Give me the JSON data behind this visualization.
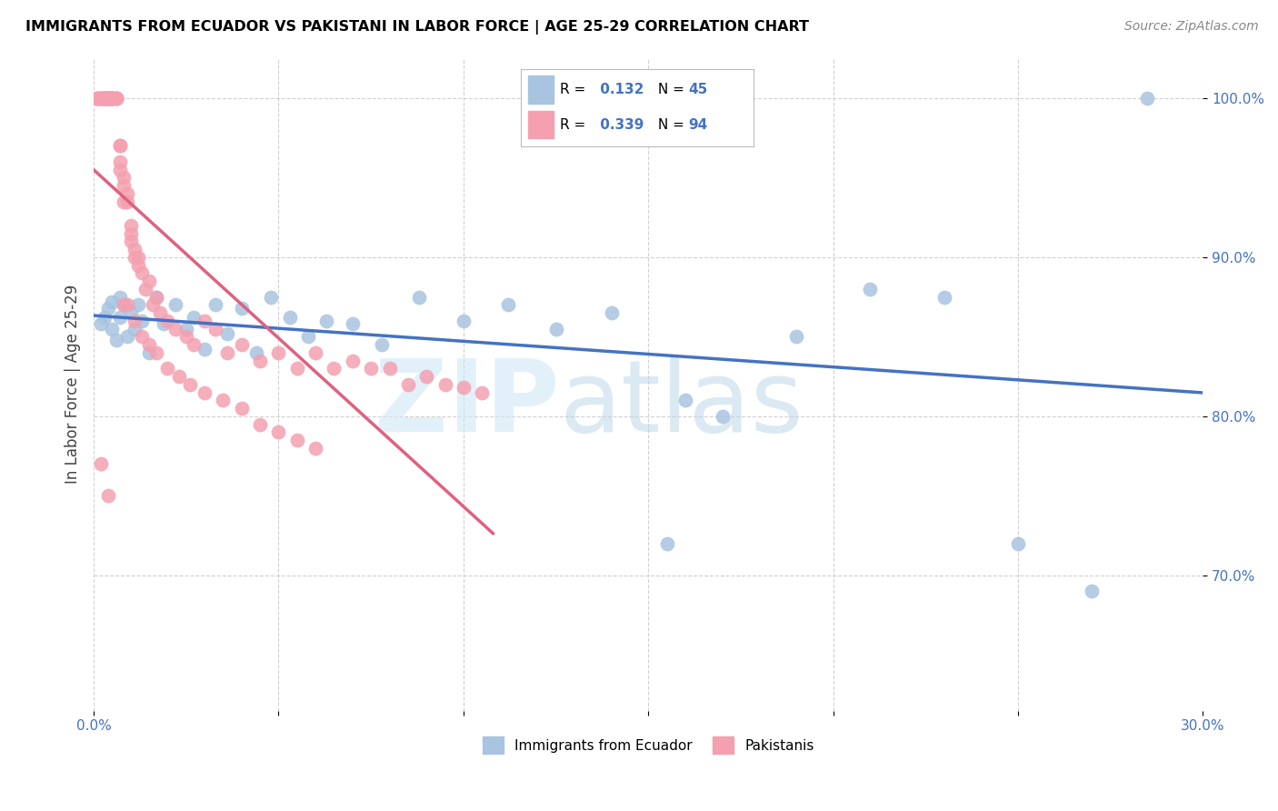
{
  "title": "IMMIGRANTS FROM ECUADOR VS PAKISTANI IN LABOR FORCE | AGE 25-29 CORRELATION CHART",
  "source": "Source: ZipAtlas.com",
  "ylabel": "In Labor Force | Age 25-29",
  "xlim": [
    0.0,
    0.3
  ],
  "ylim": [
    0.615,
    1.025
  ],
  "yticks": [
    0.7,
    0.8,
    0.9,
    1.0
  ],
  "ytick_labels": [
    "70.0%",
    "80.0%",
    "90.0%",
    "100.0%"
  ],
  "xticks": [
    0.0,
    0.05,
    0.1,
    0.15,
    0.2,
    0.25,
    0.3
  ],
  "xtick_labels": [
    "0.0%",
    "",
    "",
    "",
    "",
    "",
    "30.0%"
  ],
  "ecuador_R": 0.132,
  "ecuador_N": 45,
  "pakistan_R": 0.339,
  "pakistan_N": 94,
  "ecuador_color": "#a8c4e0",
  "pakistan_color": "#f4a0b0",
  "ecuador_line_color": "#4472c4",
  "pakistan_line_color": "#e06080",
  "watermark_zip": "ZIP",
  "watermark_atlas": "atlas",
  "ecuador_x": [
    0.002,
    0.003,
    0.004,
    0.005,
    0.005,
    0.006,
    0.007,
    0.007,
    0.008,
    0.009,
    0.01,
    0.011,
    0.012,
    0.013,
    0.015,
    0.017,
    0.019,
    0.022,
    0.025,
    0.027,
    0.03,
    0.033,
    0.036,
    0.04,
    0.044,
    0.048,
    0.053,
    0.058,
    0.063,
    0.07,
    0.078,
    0.088,
    0.1,
    0.112,
    0.125,
    0.14,
    0.155,
    0.17,
    0.19,
    0.21,
    0.23,
    0.25,
    0.27,
    0.285,
    0.16
  ],
  "ecuador_y": [
    0.858,
    0.862,
    0.868,
    0.855,
    0.872,
    0.848,
    0.875,
    0.862,
    0.87,
    0.85,
    0.865,
    0.855,
    0.87,
    0.86,
    0.84,
    0.875,
    0.858,
    0.87,
    0.855,
    0.862,
    0.842,
    0.87,
    0.852,
    0.868,
    0.84,
    0.875,
    0.862,
    0.85,
    0.86,
    0.858,
    0.845,
    0.875,
    0.86,
    0.87,
    0.855,
    0.865,
    0.72,
    0.8,
    0.85,
    0.88,
    0.875,
    0.72,
    0.69,
    1.0,
    0.81
  ],
  "pakistan_x": [
    0.001,
    0.001,
    0.001,
    0.002,
    0.002,
    0.002,
    0.002,
    0.003,
    0.003,
    0.003,
    0.003,
    0.003,
    0.003,
    0.003,
    0.003,
    0.004,
    0.004,
    0.004,
    0.004,
    0.004,
    0.004,
    0.005,
    0.005,
    0.005,
    0.005,
    0.005,
    0.005,
    0.005,
    0.005,
    0.006,
    0.006,
    0.006,
    0.006,
    0.007,
    0.007,
    0.007,
    0.007,
    0.008,
    0.008,
    0.008,
    0.009,
    0.009,
    0.01,
    0.01,
    0.01,
    0.011,
    0.011,
    0.012,
    0.012,
    0.013,
    0.014,
    0.015,
    0.016,
    0.017,
    0.018,
    0.02,
    0.022,
    0.025,
    0.027,
    0.03,
    0.033,
    0.036,
    0.04,
    0.045,
    0.05,
    0.055,
    0.06,
    0.065,
    0.07,
    0.075,
    0.08,
    0.085,
    0.09,
    0.095,
    0.1,
    0.105,
    0.008,
    0.009,
    0.011,
    0.013,
    0.015,
    0.017,
    0.02,
    0.023,
    0.026,
    0.03,
    0.035,
    0.04,
    0.045,
    0.05,
    0.055,
    0.06,
    0.002,
    0.004
  ],
  "pakistan_y": [
    1.0,
    1.0,
    1.0,
    1.0,
    1.0,
    1.0,
    1.0,
    1.0,
    1.0,
    1.0,
    1.0,
    1.0,
    1.0,
    1.0,
    1.0,
    1.0,
    1.0,
    1.0,
    1.0,
    1.0,
    1.0,
    1.0,
    1.0,
    1.0,
    1.0,
    1.0,
    1.0,
    1.0,
    1.0,
    1.0,
    1.0,
    1.0,
    1.0,
    0.97,
    0.955,
    0.96,
    0.97,
    0.945,
    0.95,
    0.935,
    0.94,
    0.935,
    0.92,
    0.915,
    0.91,
    0.905,
    0.9,
    0.895,
    0.9,
    0.89,
    0.88,
    0.885,
    0.87,
    0.875,
    0.865,
    0.86,
    0.855,
    0.85,
    0.845,
    0.86,
    0.855,
    0.84,
    0.845,
    0.835,
    0.84,
    0.83,
    0.84,
    0.83,
    0.835,
    0.83,
    0.83,
    0.82,
    0.825,
    0.82,
    0.818,
    0.815,
    0.87,
    0.87,
    0.86,
    0.85,
    0.845,
    0.84,
    0.83,
    0.825,
    0.82,
    0.815,
    0.81,
    0.805,
    0.795,
    0.79,
    0.785,
    0.78,
    0.77,
    0.75
  ]
}
